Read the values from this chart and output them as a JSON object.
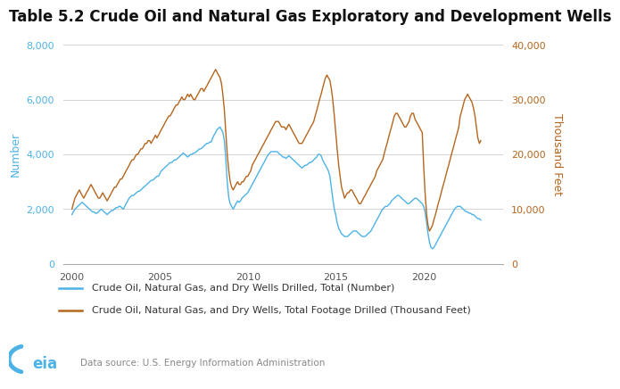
{
  "title": "Table 5.2 Crude Oil and Natural Gas Exploratory and Development Wells",
  "ylabel_left": "Number",
  "ylabel_right": "Thousand Feet",
  "data_source": "Data source: U.S. Energy Information Administration",
  "legend_labels": [
    "Crude Oil, Natural Gas, and Dry Wells Drilled, Total (Number)",
    "Crude Oil, Natural Gas, and Dry Wells, Total Footage Drilled (Thousand Feet)"
  ],
  "color_blue": "#4db3e6",
  "color_orange": "#b5651d",
  "left_ylim": [
    0,
    8000
  ],
  "right_ylim": [
    0,
    40000
  ],
  "left_yticks": [
    0,
    2000,
    4000,
    6000,
    8000
  ],
  "right_yticks": [
    0,
    10000,
    20000,
    30000,
    40000
  ],
  "left_ytick_labels": [
    "0",
    "2,000",
    "4,000",
    "6,000",
    "8,000"
  ],
  "right_ytick_labels": [
    "0",
    "10,000",
    "20,000",
    "30,000",
    "40,000"
  ],
  "xticks": [
    2000,
    2005,
    2010,
    2015,
    2020
  ],
  "xlim": [
    1999.5,
    2024.5
  ],
  "background_color": "#ffffff",
  "grid_color": "#cccccc",
  "title_fontsize": 12,
  "axis_label_fontsize": 9,
  "tick_fontsize": 8,
  "legend_fontsize": 8,
  "wells_number": {
    "years": [
      2000,
      2000.08,
      2000.17,
      2000.25,
      2000.33,
      2000.42,
      2000.5,
      2000.58,
      2000.67,
      2000.75,
      2000.83,
      2000.92,
      2001,
      2001.08,
      2001.17,
      2001.25,
      2001.33,
      2001.42,
      2001.5,
      2001.58,
      2001.67,
      2001.75,
      2001.83,
      2001.92,
      2002,
      2002.08,
      2002.17,
      2002.25,
      2002.33,
      2002.42,
      2002.5,
      2002.58,
      2002.67,
      2002.75,
      2002.83,
      2002.92,
      2003,
      2003.08,
      2003.17,
      2003.25,
      2003.33,
      2003.42,
      2003.5,
      2003.58,
      2003.67,
      2003.75,
      2003.83,
      2003.92,
      2004,
      2004.08,
      2004.17,
      2004.25,
      2004.33,
      2004.42,
      2004.5,
      2004.58,
      2004.67,
      2004.75,
      2004.83,
      2004.92,
      2005,
      2005.08,
      2005.17,
      2005.25,
      2005.33,
      2005.42,
      2005.5,
      2005.58,
      2005.67,
      2005.75,
      2005.83,
      2005.92,
      2006,
      2006.08,
      2006.17,
      2006.25,
      2006.33,
      2006.42,
      2006.5,
      2006.58,
      2006.67,
      2006.75,
      2006.83,
      2006.92,
      2007,
      2007.08,
      2007.17,
      2007.25,
      2007.33,
      2007.42,
      2007.5,
      2007.58,
      2007.67,
      2007.75,
      2007.83,
      2007.92,
      2008,
      2008.08,
      2008.17,
      2008.25,
      2008.33,
      2008.42,
      2008.5,
      2008.58,
      2008.67,
      2008.75,
      2008.83,
      2008.92,
      2009,
      2009.08,
      2009.17,
      2009.25,
      2009.33,
      2009.42,
      2009.5,
      2009.58,
      2009.67,
      2009.75,
      2009.83,
      2009.92,
      2010,
      2010.08,
      2010.17,
      2010.25,
      2010.33,
      2010.42,
      2010.5,
      2010.58,
      2010.67,
      2010.75,
      2010.83,
      2010.92,
      2011,
      2011.08,
      2011.17,
      2011.25,
      2011.33,
      2011.42,
      2011.5,
      2011.58,
      2011.67,
      2011.75,
      2011.83,
      2011.92,
      2012,
      2012.08,
      2012.17,
      2012.25,
      2012.33,
      2012.42,
      2012.5,
      2012.58,
      2012.67,
      2012.75,
      2012.83,
      2012.92,
      2013,
      2013.08,
      2013.17,
      2013.25,
      2013.33,
      2013.42,
      2013.5,
      2013.58,
      2013.67,
      2013.75,
      2013.83,
      2013.92,
      2014,
      2014.08,
      2014.17,
      2014.25,
      2014.33,
      2014.42,
      2014.5,
      2014.58,
      2014.67,
      2014.75,
      2014.83,
      2014.92,
      2015,
      2015.08,
      2015.17,
      2015.25,
      2015.33,
      2015.42,
      2015.5,
      2015.58,
      2015.67,
      2015.75,
      2015.83,
      2015.92,
      2016,
      2016.08,
      2016.17,
      2016.25,
      2016.33,
      2016.42,
      2016.5,
      2016.58,
      2016.67,
      2016.75,
      2016.83,
      2016.92,
      2017,
      2017.08,
      2017.17,
      2017.25,
      2017.33,
      2017.42,
      2017.5,
      2017.58,
      2017.67,
      2017.75,
      2017.83,
      2017.92,
      2018,
      2018.08,
      2018.17,
      2018.25,
      2018.33,
      2018.42,
      2018.5,
      2018.58,
      2018.67,
      2018.75,
      2018.83,
      2018.92,
      2019,
      2019.08,
      2019.17,
      2019.25,
      2019.33,
      2019.42,
      2019.5,
      2019.58,
      2019.67,
      2019.75,
      2019.83,
      2019.92,
      2020,
      2020.08,
      2020.17,
      2020.25,
      2020.33,
      2020.42,
      2020.5,
      2020.58,
      2020.67,
      2020.75,
      2020.83,
      2020.92,
      2021,
      2021.08,
      2021.17,
      2021.25,
      2021.33,
      2021.42,
      2021.5,
      2021.58,
      2021.67,
      2021.75,
      2021.83,
      2021.92,
      2022,
      2022.08,
      2022.17,
      2022.25,
      2022.33,
      2022.42,
      2022.5,
      2022.58,
      2022.67,
      2022.75,
      2022.83,
      2022.92,
      2023,
      2023.08,
      2023.17,
      2023.25
    ],
    "values": [
      1800,
      1900,
      2000,
      2050,
      2100,
      2150,
      2200,
      2250,
      2200,
      2150,
      2100,
      2050,
      2000,
      1950,
      1900,
      1900,
      1850,
      1850,
      1900,
      1950,
      2000,
      1950,
      1900,
      1850,
      1800,
      1850,
      1900,
      1950,
      1950,
      2000,
      2050,
      2050,
      2100,
      2100,
      2050,
      2000,
      2100,
      2200,
      2300,
      2400,
      2450,
      2500,
      2500,
      2550,
      2600,
      2650,
      2650,
      2700,
      2750,
      2800,
      2850,
      2900,
      2950,
      3000,
      3050,
      3050,
      3100,
      3150,
      3200,
      3200,
      3300,
      3400,
      3450,
      3500,
      3550,
      3600,
      3650,
      3700,
      3700,
      3750,
      3800,
      3800,
      3850,
      3900,
      3950,
      4000,
      4050,
      4000,
      3950,
      3900,
      3950,
      4000,
      4000,
      4050,
      4050,
      4100,
      4150,
      4200,
      4200,
      4250,
      4300,
      4350,
      4400,
      4400,
      4450,
      4450,
      4600,
      4700,
      4800,
      4900,
      4950,
      5000,
      4900,
      4800,
      4500,
      3800,
      3000,
      2400,
      2200,
      2100,
      2000,
      2100,
      2200,
      2300,
      2250,
      2300,
      2400,
      2450,
      2500,
      2550,
      2600,
      2700,
      2800,
      2900,
      3000,
      3100,
      3200,
      3300,
      3400,
      3500,
      3600,
      3700,
      3800,
      3900,
      4000,
      4050,
      4100,
      4100,
      4100,
      4100,
      4100,
      4050,
      4000,
      3950,
      3900,
      3900,
      3850,
      3900,
      3950,
      3900,
      3850,
      3800,
      3750,
      3700,
      3650,
      3600,
      3550,
      3500,
      3550,
      3600,
      3600,
      3650,
      3700,
      3700,
      3750,
      3800,
      3850,
      3900,
      4000,
      4000,
      3950,
      3800,
      3700,
      3600,
      3500,
      3400,
      3200,
      2800,
      2400,
      2000,
      1800,
      1500,
      1300,
      1200,
      1100,
      1050,
      1000,
      1000,
      1000,
      1050,
      1100,
      1150,
      1200,
      1200,
      1200,
      1150,
      1100,
      1050,
      1000,
      1000,
      1000,
      1050,
      1100,
      1150,
      1200,
      1300,
      1400,
      1500,
      1600,
      1700,
      1800,
      1900,
      2000,
      2050,
      2100,
      2100,
      2150,
      2200,
      2300,
      2350,
      2400,
      2450,
      2500,
      2500,
      2450,
      2400,
      2350,
      2300,
      2250,
      2200,
      2200,
      2250,
      2300,
      2350,
      2400,
      2400,
      2350,
      2300,
      2250,
      2200,
      2100,
      1900,
      1500,
      1100,
      800,
      600,
      550,
      600,
      700,
      800,
      900,
      1000,
      1100,
      1200,
      1300,
      1400,
      1500,
      1600,
      1700,
      1800,
      1900,
      2000,
      2050,
      2100,
      2100,
      2100,
      2050,
      2000,
      1950,
      1900,
      1900,
      1850,
      1850,
      1800,
      1800,
      1750,
      1700,
      1650,
      1650,
      1600
    ]
  },
  "wells_footage": {
    "years": [
      2000,
      2000.08,
      2000.17,
      2000.25,
      2000.33,
      2000.42,
      2000.5,
      2000.58,
      2000.67,
      2000.75,
      2000.83,
      2000.92,
      2001,
      2001.08,
      2001.17,
      2001.25,
      2001.33,
      2001.42,
      2001.5,
      2001.58,
      2001.67,
      2001.75,
      2001.83,
      2001.92,
      2002,
      2002.08,
      2002.17,
      2002.25,
      2002.33,
      2002.42,
      2002.5,
      2002.58,
      2002.67,
      2002.75,
      2002.83,
      2002.92,
      2003,
      2003.08,
      2003.17,
      2003.25,
      2003.33,
      2003.42,
      2003.5,
      2003.58,
      2003.67,
      2003.75,
      2003.83,
      2003.92,
      2004,
      2004.08,
      2004.17,
      2004.25,
      2004.33,
      2004.42,
      2004.5,
      2004.58,
      2004.67,
      2004.75,
      2004.83,
      2004.92,
      2005,
      2005.08,
      2005.17,
      2005.25,
      2005.33,
      2005.42,
      2005.5,
      2005.58,
      2005.67,
      2005.75,
      2005.83,
      2005.92,
      2006,
      2006.08,
      2006.17,
      2006.25,
      2006.33,
      2006.42,
      2006.5,
      2006.58,
      2006.67,
      2006.75,
      2006.83,
      2006.92,
      2007,
      2007.08,
      2007.17,
      2007.25,
      2007.33,
      2007.42,
      2007.5,
      2007.58,
      2007.67,
      2007.75,
      2007.83,
      2007.92,
      2008,
      2008.08,
      2008.17,
      2008.25,
      2008.33,
      2008.42,
      2008.5,
      2008.58,
      2008.67,
      2008.75,
      2008.83,
      2008.92,
      2009,
      2009.08,
      2009.17,
      2009.25,
      2009.33,
      2009.42,
      2009.5,
      2009.58,
      2009.67,
      2009.75,
      2009.83,
      2009.92,
      2010,
      2010.08,
      2010.17,
      2010.25,
      2010.33,
      2010.42,
      2010.5,
      2010.58,
      2010.67,
      2010.75,
      2010.83,
      2010.92,
      2011,
      2011.08,
      2011.17,
      2011.25,
      2011.33,
      2011.42,
      2011.5,
      2011.58,
      2011.67,
      2011.75,
      2011.83,
      2011.92,
      2012,
      2012.08,
      2012.17,
      2012.25,
      2012.33,
      2012.42,
      2012.5,
      2012.58,
      2012.67,
      2012.75,
      2012.83,
      2012.92,
      2013,
      2013.08,
      2013.17,
      2013.25,
      2013.33,
      2013.42,
      2013.5,
      2013.58,
      2013.67,
      2013.75,
      2013.83,
      2013.92,
      2014,
      2014.08,
      2014.17,
      2014.25,
      2014.33,
      2014.42,
      2014.5,
      2014.58,
      2014.67,
      2014.75,
      2014.83,
      2014.92,
      2015,
      2015.08,
      2015.17,
      2015.25,
      2015.33,
      2015.42,
      2015.5,
      2015.58,
      2015.67,
      2015.75,
      2015.83,
      2015.92,
      2016,
      2016.08,
      2016.17,
      2016.25,
      2016.33,
      2016.42,
      2016.5,
      2016.58,
      2016.67,
      2016.75,
      2016.83,
      2016.92,
      2017,
      2017.08,
      2017.17,
      2017.25,
      2017.33,
      2017.42,
      2017.5,
      2017.58,
      2017.67,
      2017.75,
      2017.83,
      2017.92,
      2018,
      2018.08,
      2018.17,
      2018.25,
      2018.33,
      2018.42,
      2018.5,
      2018.58,
      2018.67,
      2018.75,
      2018.83,
      2018.92,
      2019,
      2019.08,
      2019.17,
      2019.25,
      2019.33,
      2019.42,
      2019.5,
      2019.58,
      2019.67,
      2019.75,
      2019.83,
      2019.92,
      2020,
      2020.08,
      2020.17,
      2020.25,
      2020.33,
      2020.42,
      2020.5,
      2020.58,
      2020.67,
      2020.75,
      2020.83,
      2020.92,
      2021,
      2021.08,
      2021.17,
      2021.25,
      2021.33,
      2021.42,
      2021.5,
      2021.58,
      2021.67,
      2021.75,
      2021.83,
      2021.92,
      2022,
      2022.08,
      2022.17,
      2022.25,
      2022.33,
      2022.42,
      2022.5,
      2022.58,
      2022.67,
      2022.75,
      2022.83,
      2022.92,
      2023,
      2023.08,
      2023.17,
      2023.25
    ],
    "values": [
      10000,
      11000,
      12000,
      12500,
      13000,
      13500,
      13000,
      12500,
      12000,
      12500,
      13000,
      13500,
      14000,
      14500,
      14000,
      13500,
      13000,
      12500,
      12000,
      12000,
      12500,
      13000,
      12500,
      12000,
      11500,
      12000,
      12500,
      13000,
      13500,
      14000,
      14000,
      14500,
      15000,
      15500,
      15500,
      16000,
      16500,
      17000,
      17500,
      18000,
      18500,
      19000,
      19000,
      19500,
      20000,
      20000,
      20500,
      21000,
      21000,
      21500,
      22000,
      22000,
      22500,
      22500,
      22000,
      22500,
      23000,
      23500,
      23000,
      23500,
      24000,
      24500,
      25000,
      25500,
      26000,
      26500,
      27000,
      27000,
      27500,
      28000,
      28500,
      29000,
      29000,
      29500,
      30000,
      30500,
      30000,
      30000,
      30500,
      31000,
      30500,
      31000,
      30500,
      30000,
      30000,
      30500,
      31000,
      31500,
      32000,
      32000,
      31500,
      32000,
      32500,
      33000,
      33500,
      34000,
      34500,
      35000,
      35500,
      35000,
      34500,
      34000,
      33000,
      31000,
      28000,
      24000,
      20000,
      17000,
      15000,
      14000,
      13500,
      14000,
      14500,
      15000,
      14500,
      14500,
      15000,
      15000,
      15500,
      16000,
      16000,
      16500,
      17000,
      18000,
      18500,
      19000,
      19500,
      20000,
      20500,
      21000,
      21500,
      22000,
      22500,
      23000,
      23500,
      24000,
      24500,
      25000,
      25500,
      26000,
      26000,
      26000,
      25500,
      25000,
      25000,
      25000,
      24500,
      25000,
      25500,
      25000,
      24500,
      24000,
      23500,
      23000,
      22500,
      22000,
      22000,
      22000,
      22500,
      23000,
      23500,
      24000,
      24500,
      25000,
      25500,
      26000,
      27000,
      28000,
      29000,
      30000,
      31000,
      32000,
      33000,
      34000,
      34500,
      34000,
      33500,
      32000,
      30000,
      27000,
      24000,
      21000,
      18000,
      16000,
      14000,
      13000,
      12000,
      12500,
      13000,
      13000,
      13500,
      13500,
      13000,
      12500,
      12000,
      11500,
      11000,
      11000,
      11500,
      12000,
      12500,
      13000,
      13500,
      14000,
      14500,
      15000,
      15500,
      16000,
      17000,
      17500,
      18000,
      18500,
      19000,
      20000,
      21000,
      22000,
      23000,
      24000,
      25000,
      26000,
      27000,
      27500,
      27500,
      27000,
      26500,
      26000,
      25500,
      25000,
      25000,
      25500,
      26000,
      27000,
      27500,
      27500,
      26500,
      26000,
      25500,
      25000,
      24500,
      24000,
      18000,
      13000,
      9000,
      7000,
      6000,
      6500,
      7000,
      8000,
      9000,
      10000,
      11000,
      12000,
      13000,
      14000,
      15000,
      16000,
      17000,
      18000,
      19000,
      20000,
      21000,
      22000,
      23000,
      24000,
      25000,
      27000,
      28000,
      29000,
      30000,
      30500,
      31000,
      30500,
      30000,
      29500,
      28500,
      27000,
      25000,
      23000,
      22000,
      22500
    ]
  }
}
